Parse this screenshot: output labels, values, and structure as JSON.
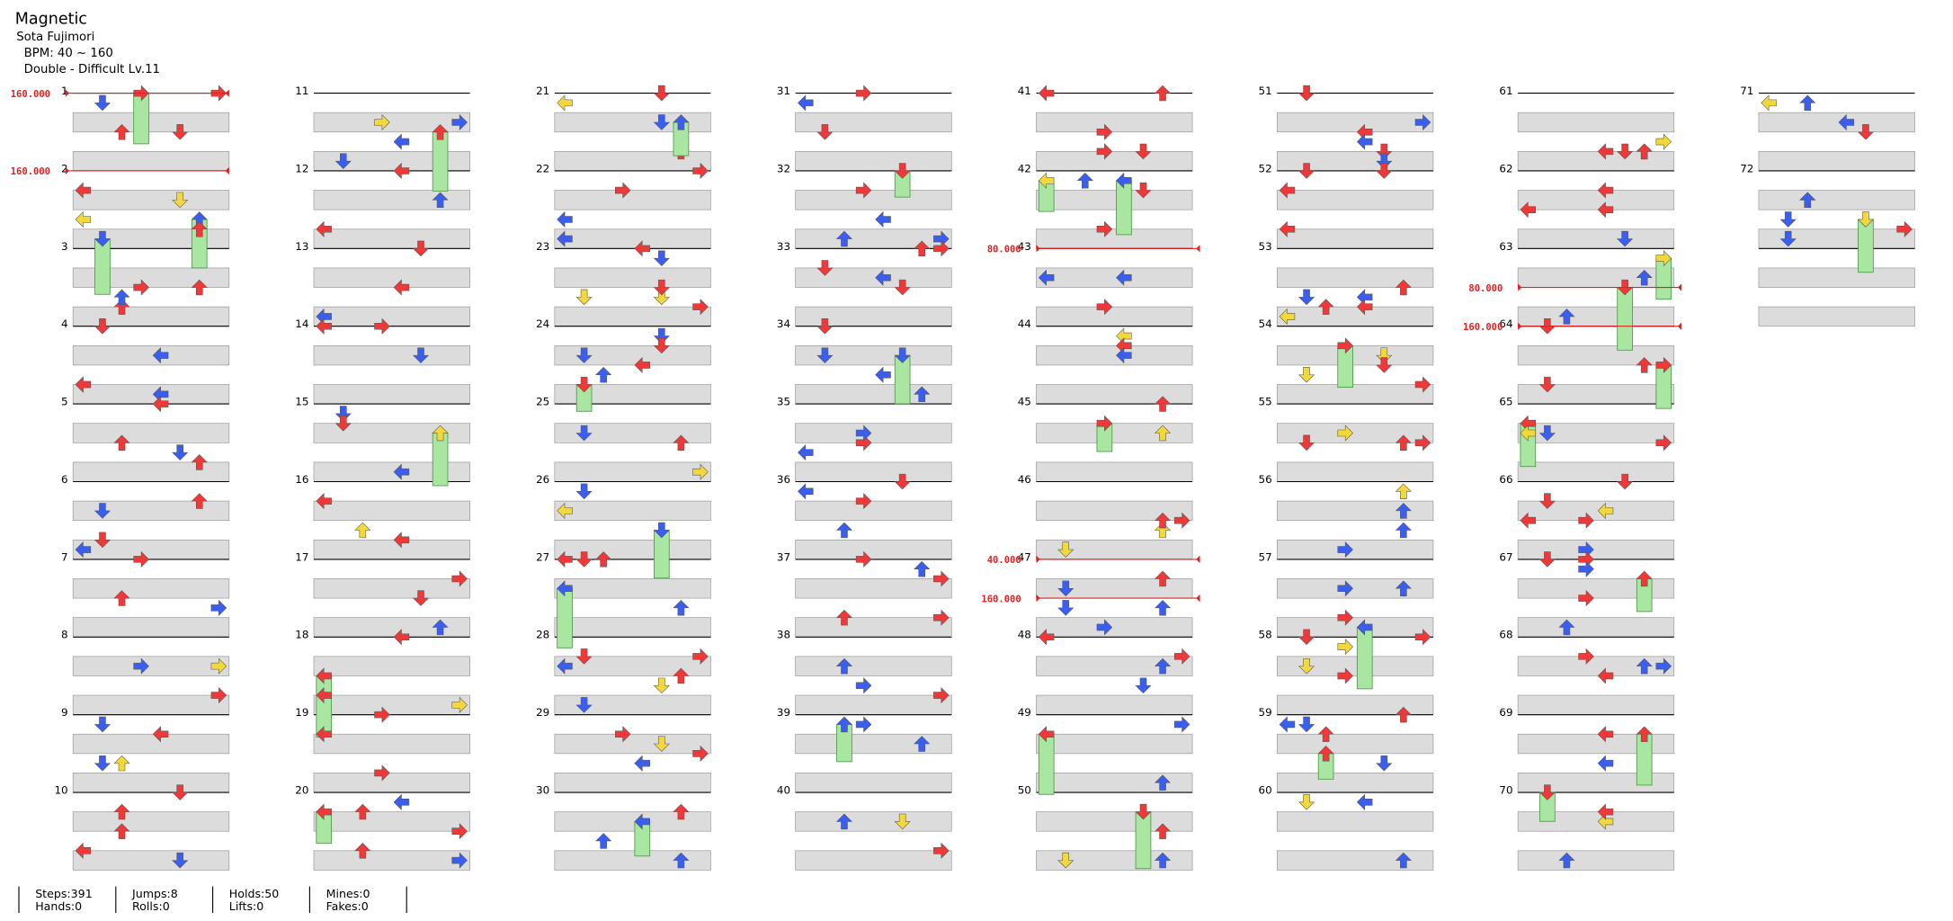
{
  "header": {
    "title": "Magnetic",
    "artist": "Sota Fujimori",
    "bpm": "BPM: 40 ~ 160",
    "difficulty": "Double - Difficult  Lv.11"
  },
  "measures": [
    1,
    2,
    3,
    4,
    5,
    6,
    7,
    8,
    9,
    10,
    11,
    12,
    13,
    14,
    15,
    16,
    17,
    18,
    19,
    20,
    21,
    22,
    23,
    24,
    25,
    26,
    27,
    28,
    29,
    30,
    31,
    32,
    33,
    34,
    35,
    36,
    37,
    38,
    39,
    40,
    41,
    42,
    43,
    44,
    45,
    46,
    47,
    48,
    49,
    50,
    51,
    52,
    53,
    54,
    55,
    56,
    57,
    58,
    59,
    60,
    61,
    62,
    63,
    64,
    65,
    66,
    67,
    68,
    69,
    70,
    71,
    72
  ],
  "bpm_changes": [
    "160.000",
    "160.000",
    "80.000",
    "40.000",
    "160.000",
    "80.000",
    "160.000"
  ],
  "stats": [
    [
      "Steps:391",
      "Hands:0"
    ],
    [
      "Jumps:8",
      "Rolls:0"
    ],
    [
      "Holds:50",
      "Lifts:0"
    ],
    [
      "Mines:0",
      "Fakes:0"
    ]
  ]
}
